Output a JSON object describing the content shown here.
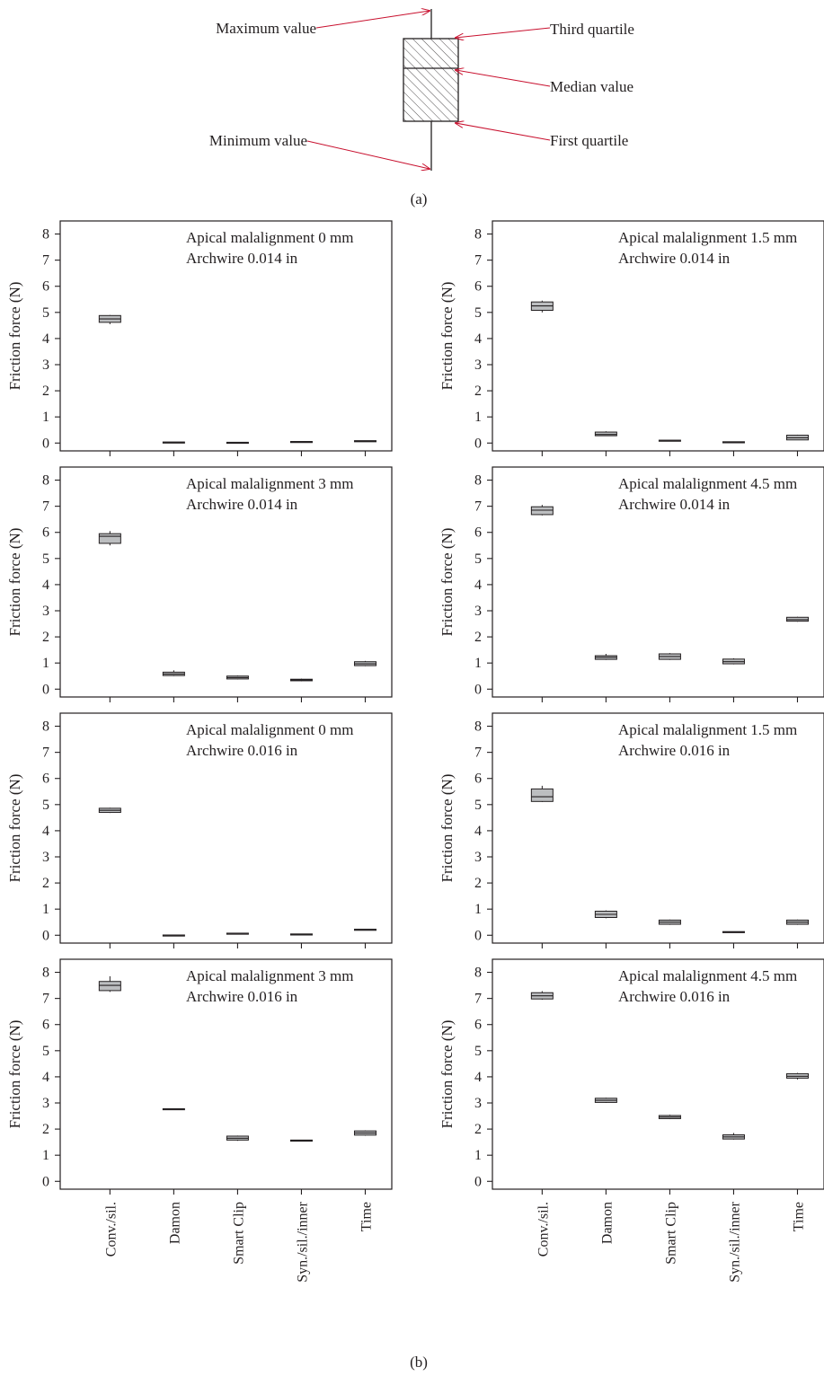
{
  "legend": {
    "panel_label": "(a)",
    "labels": {
      "max": "Maximum value",
      "q3": "Third quartile",
      "median": "Median value",
      "q1": "First quartile",
      "min": "Minimum value"
    },
    "arrow_color": "#c8102e",
    "box_hatch": "diagonal"
  },
  "panel_label_b": "(b)",
  "colors": {
    "box_fill": "#bcbec0",
    "axis": "#231f20"
  },
  "chart_data": [
    {
      "type": "box",
      "annotation": [
        "Apical malalignment 0 mm",
        "Archwire 0.014 in"
      ],
      "ylabel": "Friction force (N)",
      "ylim": [
        -0.3,
        8.5
      ],
      "yticks": [
        0,
        1,
        2,
        3,
        4,
        5,
        6,
        7,
        8
      ],
      "categories": [
        "Conv./sil.",
        "Damon",
        "Smart Clip",
        "Syn./sil./inner",
        "Time"
      ],
      "show_xticklabels": false,
      "boxes": [
        {
          "min": 4.55,
          "q1": 4.62,
          "median": 4.75,
          "q3": 4.88,
          "max": 4.9
        },
        {
          "min": 0.02,
          "q1": 0.02,
          "median": 0.03,
          "q3": 0.04,
          "max": 0.04
        },
        {
          "min": 0.01,
          "q1": 0.01,
          "median": 0.02,
          "q3": 0.03,
          "max": 0.03
        },
        {
          "min": 0.04,
          "q1": 0.04,
          "median": 0.05,
          "q3": 0.06,
          "max": 0.06
        },
        {
          "min": 0.07,
          "q1": 0.07,
          "median": 0.08,
          "q3": 0.09,
          "max": 0.09
        }
      ]
    },
    {
      "type": "box",
      "annotation": [
        "Apical malalignment 1.5 mm",
        "Archwire 0.014 in"
      ],
      "ylabel": "Friction force (N)",
      "ylim": [
        -0.3,
        8.5
      ],
      "yticks": [
        0,
        1,
        2,
        3,
        4,
        5,
        6,
        7,
        8
      ],
      "categories": [
        "Conv./sil.",
        "Damon",
        "Smart Clip",
        "Syn./sil./inner",
        "Time"
      ],
      "show_xticklabels": false,
      "boxes": [
        {
          "min": 5.0,
          "q1": 5.08,
          "median": 5.25,
          "q3": 5.4,
          "max": 5.45
        },
        {
          "min": 0.28,
          "q1": 0.28,
          "median": 0.33,
          "q3": 0.42,
          "max": 0.45
        },
        {
          "min": 0.09,
          "q1": 0.09,
          "median": 0.1,
          "q3": 0.11,
          "max": 0.11
        },
        {
          "min": 0.03,
          "q1": 0.03,
          "median": 0.04,
          "q3": 0.05,
          "max": 0.05
        },
        {
          "min": 0.12,
          "q1": 0.12,
          "median": 0.2,
          "q3": 0.3,
          "max": 0.32
        }
      ]
    },
    {
      "type": "box",
      "annotation": [
        "Apical malalignment 3 mm",
        "Archwire 0.014 in"
      ],
      "ylabel": "Friction force (N)",
      "ylim": [
        -0.3,
        8.5
      ],
      "yticks": [
        0,
        1,
        2,
        3,
        4,
        5,
        6,
        7,
        8
      ],
      "categories": [
        "Conv./sil.",
        "Damon",
        "Smart Clip",
        "Syn./sil./inner",
        "Time"
      ],
      "show_xticklabels": false,
      "boxes": [
        {
          "min": 5.5,
          "q1": 5.58,
          "median": 5.85,
          "q3": 5.95,
          "max": 6.05
        },
        {
          "min": 0.5,
          "q1": 0.52,
          "median": 0.58,
          "q3": 0.65,
          "max": 0.72
        },
        {
          "min": 0.37,
          "q1": 0.39,
          "median": 0.44,
          "q3": 0.5,
          "max": 0.52
        },
        {
          "min": 0.3,
          "q1": 0.32,
          "median": 0.35,
          "q3": 0.38,
          "max": 0.4
        },
        {
          "min": 0.88,
          "q1": 0.9,
          "median": 0.97,
          "q3": 1.05,
          "max": 1.08
        }
      ]
    },
    {
      "type": "box",
      "annotation": [
        "Apical malalignment 4.5 mm",
        "Archwire 0.014 in"
      ],
      "ylabel": "Friction force (N)",
      "ylim": [
        -0.3,
        8.5
      ],
      "yticks": [
        0,
        1,
        2,
        3,
        4,
        5,
        6,
        7,
        8
      ],
      "categories": [
        "Conv./sil.",
        "Damon",
        "Smart Clip",
        "Syn./sil./inner",
        "Time"
      ],
      "show_xticklabels": false,
      "boxes": [
        {
          "min": 6.65,
          "q1": 6.68,
          "median": 6.85,
          "q3": 6.98,
          "max": 7.05
        },
        {
          "min": 1.12,
          "q1": 1.14,
          "median": 1.22,
          "q3": 1.28,
          "max": 1.35
        },
        {
          "min": 1.12,
          "q1": 1.14,
          "median": 1.25,
          "q3": 1.35,
          "max": 1.38
        },
        {
          "min": 0.95,
          "q1": 0.97,
          "median": 1.05,
          "q3": 1.15,
          "max": 1.18
        },
        {
          "min": 2.58,
          "q1": 2.6,
          "median": 2.66,
          "q3": 2.75,
          "max": 2.77
        }
      ]
    },
    {
      "type": "box",
      "annotation": [
        "Apical malalignment 0 mm",
        "Archwire 0.016 in"
      ],
      "ylabel": "Friction force (N)",
      "ylim": [
        -0.3,
        8.5
      ],
      "yticks": [
        0,
        1,
        2,
        3,
        4,
        5,
        6,
        7,
        8
      ],
      "categories": [
        "Conv./sil.",
        "Damon",
        "Smart Clip",
        "Syn./sil./inner",
        "Time"
      ],
      "show_xticklabels": false,
      "boxes": [
        {
          "min": 4.68,
          "q1": 4.7,
          "median": 4.78,
          "q3": 4.86,
          "max": 4.88
        },
        {
          "min": -0.01,
          "q1": -0.01,
          "median": 0.0,
          "q3": 0.01,
          "max": 0.01
        },
        {
          "min": 0.06,
          "q1": 0.06,
          "median": 0.07,
          "q3": 0.08,
          "max": 0.08
        },
        {
          "min": 0.02,
          "q1": 0.03,
          "median": 0.04,
          "q3": 0.05,
          "max": 0.05
        },
        {
          "min": 0.21,
          "q1": 0.21,
          "median": 0.22,
          "q3": 0.23,
          "max": 0.23
        }
      ]
    },
    {
      "type": "box",
      "annotation": [
        "Apical malalignment 1.5 mm",
        "Archwire 0.016 in"
      ],
      "ylabel": "Friction force (N)",
      "ylim": [
        -0.3,
        8.5
      ],
      "yticks": [
        0,
        1,
        2,
        3,
        4,
        5,
        6,
        7,
        8
      ],
      "categories": [
        "Conv./sil.",
        "Damon",
        "Smart Clip",
        "Syn./sil./inner",
        "Time"
      ],
      "show_xticklabels": false,
      "boxes": [
        {
          "min": 5.1,
          "q1": 5.12,
          "median": 5.3,
          "q3": 5.6,
          "max": 5.72
        },
        {
          "min": 0.65,
          "q1": 0.68,
          "median": 0.8,
          "q3": 0.92,
          "max": 0.95
        },
        {
          "min": 0.4,
          "q1": 0.42,
          "median": 0.5,
          "q3": 0.58,
          "max": 0.6
        },
        {
          "min": 0.1,
          "q1": 0.1,
          "median": 0.12,
          "q3": 0.14,
          "max": 0.14
        },
        {
          "min": 0.4,
          "q1": 0.42,
          "median": 0.5,
          "q3": 0.58,
          "max": 0.6
        }
      ]
    },
    {
      "type": "box",
      "annotation": [
        "Apical malalignment 3 mm",
        "Archwire 0.016 in"
      ],
      "ylabel": "Friction force (N)",
      "ylim": [
        -0.3,
        8.5
      ],
      "yticks": [
        0,
        1,
        2,
        3,
        4,
        5,
        6,
        7,
        8
      ],
      "categories": [
        "Conv./sil.",
        "Damon",
        "Smart Clip",
        "Syn./sil./inner",
        "Time"
      ],
      "show_xticklabels": true,
      "boxes": [
        {
          "min": 7.25,
          "q1": 7.3,
          "median": 7.5,
          "q3": 7.65,
          "max": 7.85
        },
        {
          "min": 2.76,
          "q1": 2.76,
          "median": 2.77,
          "q3": 2.78,
          "max": 2.78
        },
        {
          "min": 1.55,
          "q1": 1.58,
          "median": 1.65,
          "q3": 1.73,
          "max": 1.75
        },
        {
          "min": 1.53,
          "q1": 1.54,
          "median": 1.56,
          "q3": 1.58,
          "max": 1.59
        },
        {
          "min": 1.75,
          "q1": 1.77,
          "median": 1.85,
          "q3": 1.93,
          "max": 1.95
        }
      ]
    },
    {
      "type": "box",
      "annotation": [
        "Apical malalignment 4.5 mm",
        "Archwire 0.016 in"
      ],
      "ylabel": "Friction force (N)",
      "ylim": [
        -0.3,
        8.5
      ],
      "yticks": [
        0,
        1,
        2,
        3,
        4,
        5,
        6,
        7,
        8
      ],
      "categories": [
        "Conv./sil.",
        "Damon",
        "Smart Clip",
        "Syn./sil./inner",
        "Time"
      ],
      "show_xticklabels": true,
      "boxes": [
        {
          "min": 6.95,
          "q1": 6.98,
          "median": 7.1,
          "q3": 7.22,
          "max": 7.28
        },
        {
          "min": 3.0,
          "q1": 3.02,
          "median": 3.1,
          "q3": 3.18,
          "max": 3.2
        },
        {
          "min": 2.38,
          "q1": 2.4,
          "median": 2.46,
          "q3": 2.52,
          "max": 2.55
        },
        {
          "min": 1.6,
          "q1": 1.62,
          "median": 1.7,
          "q3": 1.78,
          "max": 1.85
        },
        {
          "min": 3.9,
          "q1": 3.95,
          "median": 4.02,
          "q3": 4.12,
          "max": 4.15
        }
      ]
    }
  ]
}
